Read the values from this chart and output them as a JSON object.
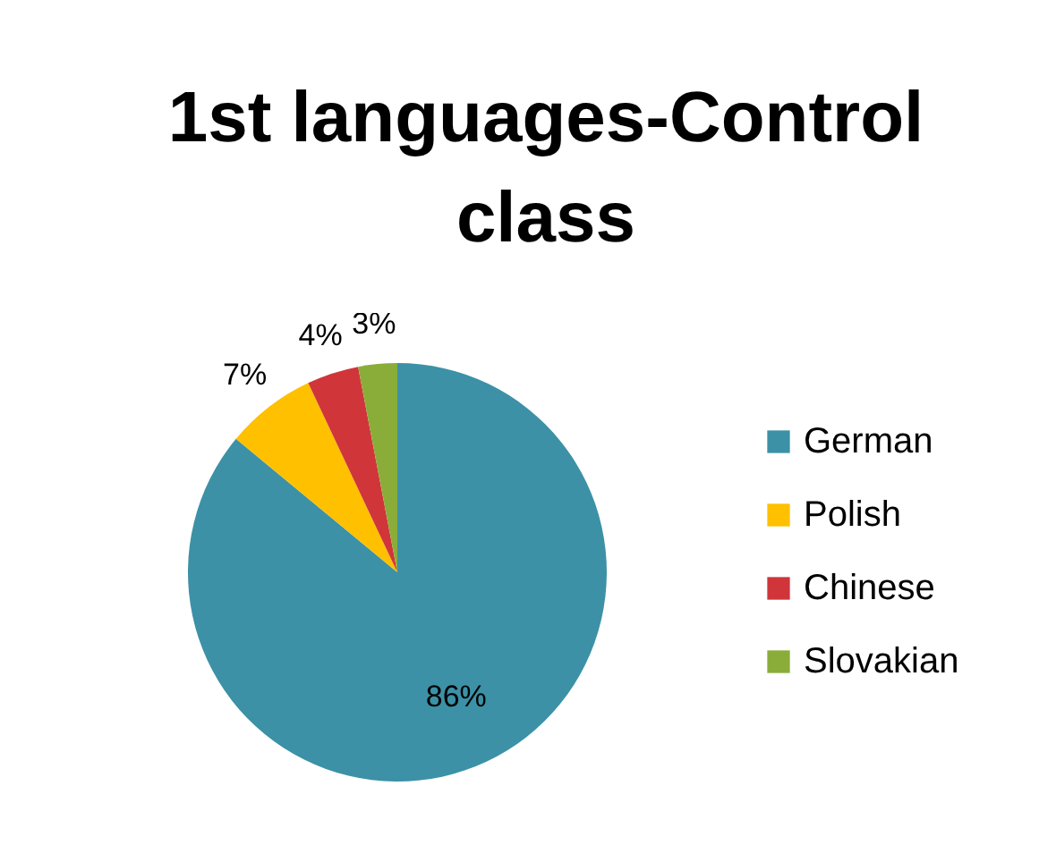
{
  "chart_data": {
    "type": "pie",
    "title": "1st languages-Control class",
    "categories": [
      "German",
      "Polish",
      "Chinese",
      "Slovakian"
    ],
    "values": [
      86,
      7,
      4,
      3
    ],
    "colors": [
      "#3c91a6",
      "#ffc000",
      "#d0353a",
      "#8aad3a"
    ],
    "value_labels": [
      "86%",
      "7%",
      "4%",
      "3%"
    ],
    "legend": "right"
  }
}
